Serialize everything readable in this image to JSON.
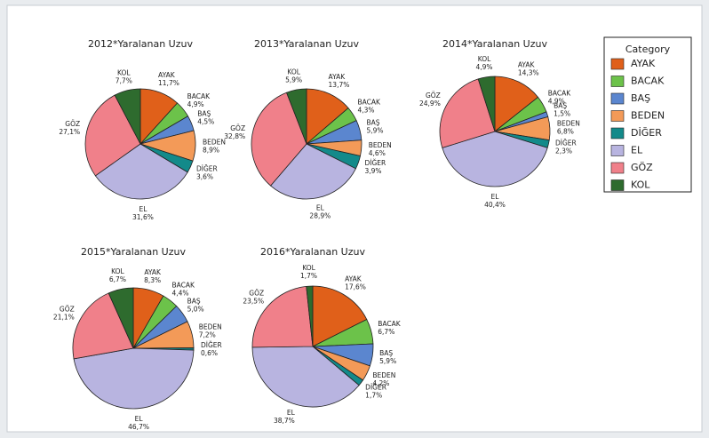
{
  "chart_data": [
    {
      "type": "pie",
      "title": "2012*Yaralanan Uzuv",
      "legend_title": "Category",
      "categories": [
        "AYAK",
        "BACAK",
        "BAŞ",
        "BEDEN",
        "DİĞER",
        "EL",
        "GÖZ",
        "KOL"
      ],
      "values": [
        11.7,
        4.9,
        4.5,
        8.9,
        3.6,
        31.6,
        27.1,
        7.7
      ],
      "value_labels": [
        "11,7%",
        "4,9%",
        "4,5%",
        "8,9%",
        "3,6%",
        "31,6%",
        "27,1%",
        "7,7%"
      ],
      "colors": [
        "#e0601a",
        "#6cc24a",
        "#5b86cf",
        "#f39a58",
        "#138a8a",
        "#b8b4e0",
        "#f0808a",
        "#2e6b2e"
      ]
    },
    {
      "type": "pie",
      "title": "2013*Yaralanan Uzuv",
      "categories": [
        "AYAK",
        "BACAK",
        "BAŞ",
        "BEDEN",
        "DİĞER",
        "EL",
        "GÖZ",
        "KOL"
      ],
      "values": [
        13.7,
        4.3,
        5.9,
        4.6,
        3.9,
        28.9,
        32.8,
        5.9
      ],
      "value_labels": [
        "13,7%",
        "4,3%",
        "5,9%",
        "4,6%",
        "3,9%",
        "28,9%",
        "32,8%",
        "5,9%"
      ],
      "colors": [
        "#e0601a",
        "#6cc24a",
        "#5b86cf",
        "#f39a58",
        "#138a8a",
        "#b8b4e0",
        "#f0808a",
        "#2e6b2e"
      ]
    },
    {
      "type": "pie",
      "title": "2014*Yaralanan Uzuv",
      "categories": [
        "AYAK",
        "BACAK",
        "BAŞ",
        "BEDEN",
        "DİĞER",
        "EL",
        "GÖZ",
        "KOL"
      ],
      "values": [
        14.3,
        4.9,
        1.5,
        6.8,
        2.3,
        40.4,
        24.9,
        4.9
      ],
      "value_labels": [
        "14,3%",
        "4,9%",
        "1,5%",
        "6,8%",
        "2,3%",
        "40,4%",
        "24,9%",
        "4,9%"
      ],
      "colors": [
        "#e0601a",
        "#6cc24a",
        "#5b86cf",
        "#f39a58",
        "#138a8a",
        "#b8b4e0",
        "#f0808a",
        "#2e6b2e"
      ]
    },
    {
      "type": "pie",
      "title": "2015*Yaralanan Uzuv",
      "categories": [
        "AYAK",
        "BACAK",
        "BAŞ",
        "BEDEN",
        "DİĞER",
        "EL",
        "GÖZ",
        "KOL"
      ],
      "values": [
        8.3,
        4.4,
        5.0,
        7.2,
        0.6,
        46.7,
        21.1,
        6.7
      ],
      "value_labels": [
        "8,3%",
        "4,4%",
        "5,0%",
        "7,2%",
        "0,6%",
        "46,7%",
        "21,1%",
        "6,7%"
      ],
      "colors": [
        "#e0601a",
        "#6cc24a",
        "#5b86cf",
        "#f39a58",
        "#138a8a",
        "#b8b4e0",
        "#f0808a",
        "#2e6b2e"
      ]
    },
    {
      "type": "pie",
      "title": "2016*Yaralanan Uzuv",
      "categories": [
        "AYAK",
        "BACAK",
        "BAŞ",
        "BEDEN",
        "DİĞER",
        "EL",
        "GÖZ",
        "KOL"
      ],
      "values": [
        17.6,
        6.7,
        5.9,
        4.2,
        1.7,
        38.7,
        23.5,
        1.7
      ],
      "value_labels": [
        "17,6%",
        "6,7%",
        "5,9%",
        "4,2%",
        "1,7%",
        "38,7%",
        "23,5%",
        "1,7%"
      ],
      "colors": [
        "#e0601a",
        "#6cc24a",
        "#5b86cf",
        "#f39a58",
        "#138a8a",
        "#b8b4e0",
        "#f0808a",
        "#2e6b2e"
      ]
    }
  ]
}
